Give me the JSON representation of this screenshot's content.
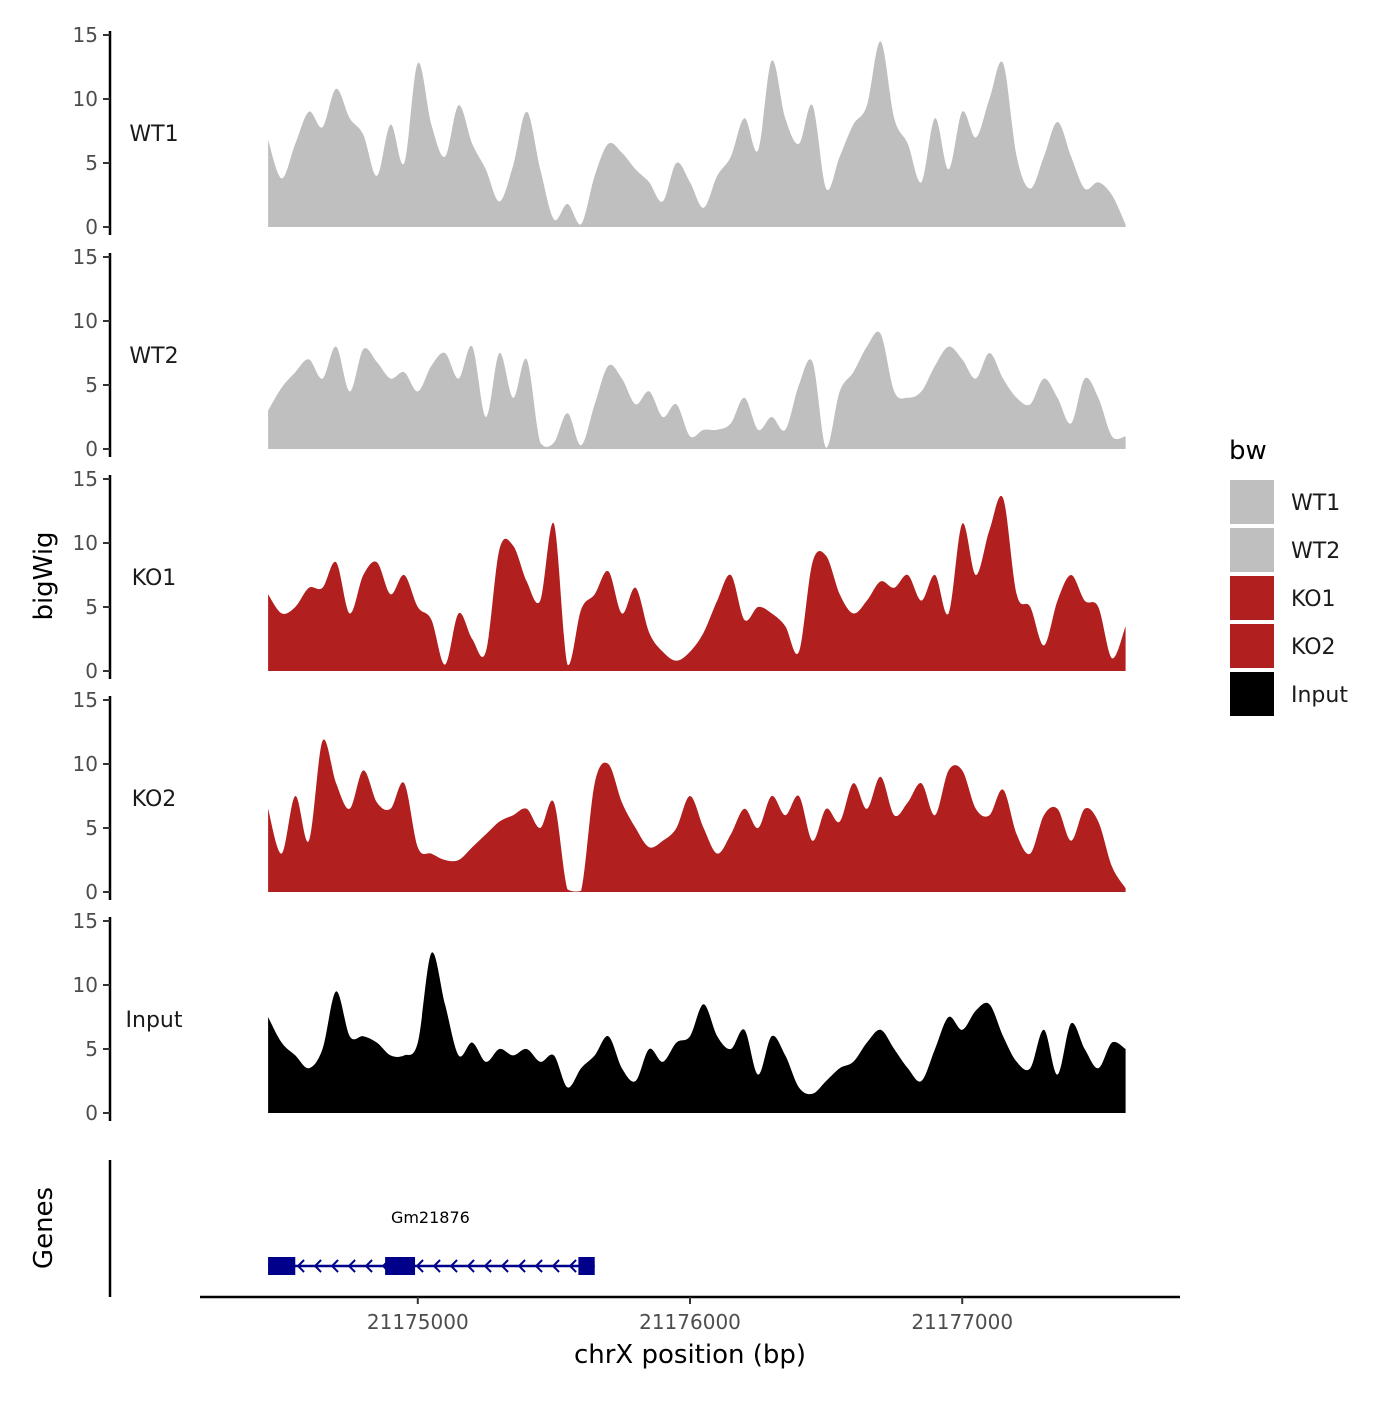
{
  "chart_data": {
    "type": "area",
    "xlabel": "chrX position (bp)",
    "ylabel": "bigWig",
    "genes_label": "Genes",
    "xlim": [
      21174200,
      21177800
    ],
    "x_ticks": [
      21175000,
      21176000,
      21177000
    ],
    "x_tick_labels": [
      "21175000",
      "21176000",
      "21177000"
    ],
    "ylim": [
      0,
      15
    ],
    "y_ticks": [
      0,
      5,
      10,
      15
    ],
    "y_tick_labels": [
      "0",
      "5",
      "10",
      "15"
    ],
    "x_positions": [
      21174450,
      21174500,
      21174550,
      21174600,
      21174650,
      21174700,
      21174750,
      21174800,
      21174850,
      21174900,
      21174950,
      21175000,
      21175050,
      21175100,
      21175150,
      21175200,
      21175250,
      21175300,
      21175350,
      21175400,
      21175450,
      21175500,
      21175550,
      21175600,
      21175650,
      21175700,
      21175750,
      21175800,
      21175850,
      21175900,
      21175950,
      21176000,
      21176050,
      21176100,
      21176150,
      21176200,
      21176250,
      21176300,
      21176350,
      21176400,
      21176450,
      21176500,
      21176550,
      21176600,
      21176650,
      21176700,
      21176750,
      21176800,
      21176850,
      21176900,
      21176950,
      21177000,
      21177050,
      21177100,
      21177150,
      21177200,
      21177250,
      21177300,
      21177350,
      21177400,
      21177450,
      21177500,
      21177550,
      21177600
    ],
    "series": [
      {
        "name": "WT1",
        "color": "#bfbfbf",
        "values": [
          6.8,
          3.8,
          6.5,
          9.0,
          7.8,
          10.8,
          8.5,
          7.2,
          4.0,
          8.0,
          5.0,
          12.8,
          8.0,
          5.5,
          9.5,
          6.5,
          4.5,
          2.0,
          4.8,
          9.0,
          4.5,
          0.6,
          1.8,
          0.2,
          4.0,
          6.5,
          5.8,
          4.5,
          3.5,
          2.0,
          5.0,
          3.5,
          1.5,
          4.0,
          5.5,
          8.5,
          6.0,
          13.0,
          8.5,
          6.5,
          9.5,
          3.0,
          5.5,
          8.0,
          9.5,
          14.5,
          8.5,
          6.5,
          3.5,
          8.5,
          4.5,
          9.0,
          7.0,
          10.0,
          12.8,
          5.5,
          3.0,
          5.5,
          8.2,
          5.5,
          3.0,
          3.5,
          2.5,
          0.2
        ]
      },
      {
        "name": "WT2",
        "color": "#bfbfbf",
        "values": [
          3.0,
          4.8,
          6.0,
          7.0,
          5.5,
          8.0,
          4.5,
          7.8,
          6.8,
          5.5,
          6.0,
          4.5,
          6.5,
          7.5,
          5.5,
          8.0,
          2.5,
          7.5,
          4.0,
          7.0,
          0.5,
          0.5,
          2.8,
          0.3,
          3.5,
          6.5,
          5.5,
          3.5,
          4.5,
          2.5,
          3.5,
          1.0,
          1.5,
          1.5,
          2.0,
          4.0,
          1.5,
          2.5,
          1.5,
          5.0,
          6.8,
          0.1,
          4.5,
          6.0,
          8.0,
          9.0,
          4.5,
          4.0,
          4.5,
          6.5,
          8.0,
          7.0,
          5.5,
          7.5,
          5.5,
          4.0,
          3.5,
          5.5,
          4.0,
          2.0,
          5.5,
          4.0,
          1.0,
          1.0
        ]
      },
      {
        "name": "KO1",
        "color": "#b21f1f",
        "values": [
          6.0,
          4.5,
          5.0,
          6.5,
          6.5,
          8.5,
          4.5,
          7.5,
          8.5,
          6.0,
          7.5,
          5.0,
          4.0,
          0.5,
          4.5,
          2.5,
          1.5,
          9.5,
          9.8,
          7.0,
          5.5,
          11.5,
          0.5,
          4.8,
          6.0,
          7.8,
          4.5,
          6.5,
          3.0,
          1.5,
          0.8,
          1.5,
          3.0,
          5.5,
          7.5,
          4.0,
          5.0,
          4.5,
          3.5,
          1.5,
          8.5,
          9.0,
          6.0,
          4.5,
          5.5,
          7.0,
          6.5,
          7.5,
          5.5,
          7.5,
          4.5,
          11.5,
          7.5,
          11.0,
          13.5,
          6.0,
          5.0,
          2.0,
          5.5,
          7.5,
          5.5,
          5.0,
          1.0,
          3.5
        ]
      },
      {
        "name": "KO2",
        "color": "#b21f1f",
        "values": [
          6.5,
          3.0,
          7.5,
          4.0,
          11.8,
          8.5,
          6.5,
          9.5,
          7.0,
          6.5,
          8.5,
          3.5,
          3.0,
          2.5,
          2.5,
          3.5,
          4.5,
          5.5,
          6.0,
          6.5,
          5.0,
          7.0,
          0.2,
          0.1,
          8.5,
          10.0,
          7.0,
          5.0,
          3.5,
          4.0,
          5.0,
          7.5,
          5.0,
          3.0,
          4.5,
          6.5,
          5.0,
          7.5,
          6.0,
          7.5,
          4.0,
          6.5,
          5.5,
          8.5,
          6.5,
          9.0,
          6.0,
          7.0,
          8.5,
          6.0,
          9.5,
          9.5,
          6.5,
          6.0,
          8.0,
          4.5,
          3.0,
          6.0,
          6.5,
          4.0,
          6.5,
          5.5,
          2.0,
          0.3
        ]
      },
      {
        "name": "Input",
        "color": "#000000",
        "values": [
          7.5,
          5.5,
          4.5,
          3.5,
          5.0,
          9.5,
          6.0,
          6.0,
          5.5,
          4.5,
          4.5,
          5.5,
          12.5,
          8.5,
          4.5,
          5.5,
          4.0,
          5.0,
          4.5,
          5.0,
          4.0,
          4.5,
          2.0,
          3.5,
          4.5,
          6.0,
          3.5,
          2.5,
          5.0,
          4.0,
          5.5,
          6.0,
          8.5,
          6.0,
          5.0,
          6.5,
          3.0,
          6.0,
          4.5,
          2.0,
          1.5,
          2.5,
          3.5,
          4.0,
          5.5,
          6.5,
          5.0,
          3.5,
          2.5,
          5.0,
          7.5,
          6.5,
          8.0,
          8.5,
          6.0,
          4.0,
          3.5,
          6.5,
          3.0,
          7.0,
          5.0,
          3.5,
          5.5,
          5.0
        ]
      }
    ],
    "legend": {
      "title": "bw",
      "position": "right",
      "entries": [
        "WT1",
        "WT2",
        "KO1",
        "KO2",
        "Input"
      ]
    },
    "genes": [
      {
        "name": "Gm21876",
        "start": 21174450,
        "end": 21175650,
        "strand": "-",
        "exons": [
          [
            21174450,
            21174550
          ],
          [
            21174880,
            21174990
          ],
          [
            21175590,
            21175650
          ]
        ],
        "color": "#00008b"
      }
    ],
    "grid": false
  }
}
